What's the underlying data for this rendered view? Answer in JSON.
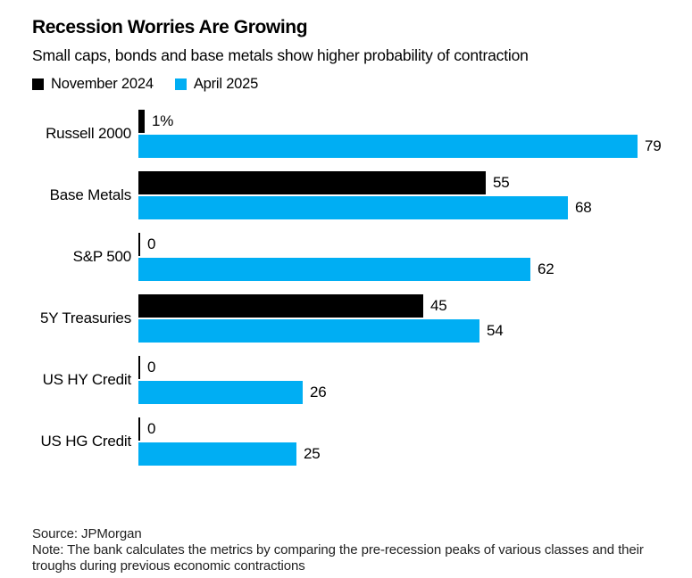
{
  "header": {
    "title": "Recession Worries Are Growing",
    "subtitle": "Small caps, bonds and base metals show higher probability of contraction"
  },
  "legend": [
    {
      "label": "November 2024",
      "color": "#000000"
    },
    {
      "label": "April 2025",
      "color": "#00AEF3"
    }
  ],
  "chart_data": {
    "type": "bar",
    "orientation": "horizontal",
    "title": "Recession Worries Are Growing",
    "subtitle": "Small caps, bonds and base metals show higher probability of contraction",
    "categories": [
      "Russell 2000",
      "Base Metals",
      "S&P 500",
      "5Y Treasuries",
      "US HY Credit",
      "US HG Credit"
    ],
    "series": [
      {
        "name": "November 2024",
        "color": "#000000",
        "values": [
          1,
          55,
          0,
          45,
          0,
          0
        ],
        "labels": [
          "1%",
          "55",
          "0",
          "45",
          "0",
          "0"
        ]
      },
      {
        "name": "April 2025",
        "color": "#00AEF3",
        "values": [
          79,
          68,
          62,
          54,
          26,
          25
        ],
        "labels": [
          "79",
          "68",
          "62",
          "54",
          "26",
          "25"
        ]
      }
    ],
    "xlim": [
      0,
      80
    ],
    "unit": "%",
    "legend_position": "top",
    "grid": false
  },
  "footer": {
    "source": "Source: JPMorgan",
    "note": "Note: The bank calculates the metrics by comparing the pre-recession peaks of various classes and their troughs during previous economic contractions"
  }
}
